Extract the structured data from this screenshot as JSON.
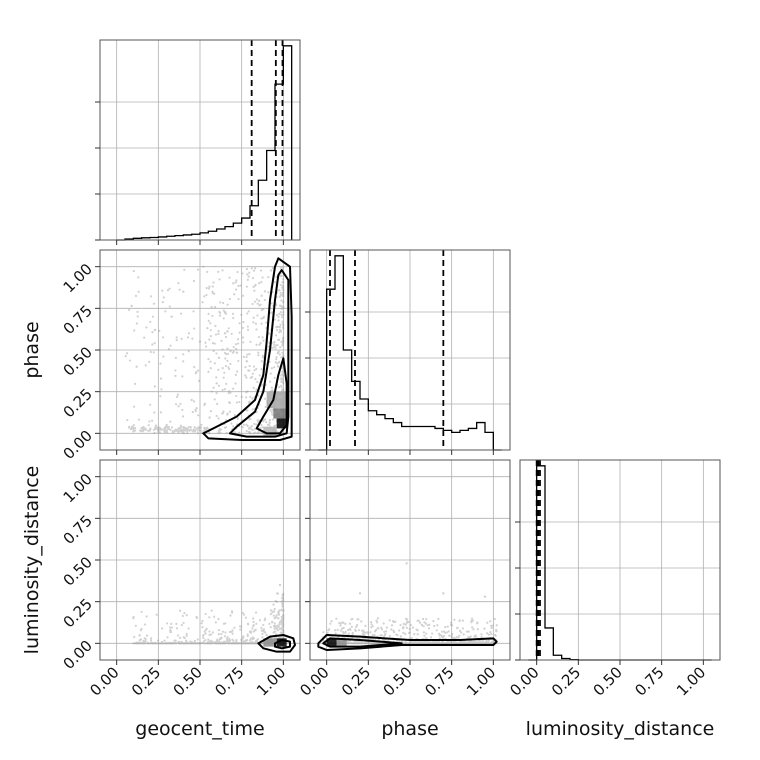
{
  "chart_data": {
    "type": "corner",
    "parameters": [
      "geocent_time",
      "phase",
      "luminosity_distance"
    ],
    "axis_labels": {
      "bottom": [
        "geocent_time",
        "phase",
        "luminosity_distance"
      ],
      "left": [
        "phase",
        "luminosity_distance"
      ]
    },
    "ticks": [
      0.0,
      0.25,
      0.5,
      0.75,
      1.0
    ],
    "tick_labels": [
      "0.00",
      "0.25",
      "0.50",
      "0.75",
      "1.00"
    ],
    "xlim": [
      -0.1,
      1.1
    ],
    "ylim": [
      -0.1,
      1.1
    ],
    "grid": true,
    "colors": {
      "contour": "#000000",
      "points": "#9a9a9a",
      "grid": "#b0b0b0"
    },
    "histograms": [
      {
        "parameter": "geocent_time",
        "edges": [
          0.0,
          0.05,
          0.1,
          0.15,
          0.2,
          0.25,
          0.3,
          0.35,
          0.4,
          0.45,
          0.5,
          0.55,
          0.6,
          0.65,
          0.7,
          0.75,
          0.8,
          0.85,
          0.9,
          0.95,
          1.0,
          1.05
        ],
        "counts": [
          0,
          0.6,
          1.0,
          1.3,
          1.5,
          1.8,
          2.2,
          2.6,
          3.0,
          3.4,
          4.2,
          5.2,
          6.5,
          7.9,
          10.0,
          13.0,
          20.3,
          35.4,
          53.0,
          92.3,
          115.0
        ],
        "quantiles": [
          0.81,
          0.955,
          0.995
        ]
      },
      {
        "parameter": "phase",
        "edges": [
          -0.05,
          0.0,
          0.05,
          0.1,
          0.15,
          0.2,
          0.25,
          0.3,
          0.35,
          0.4,
          0.45,
          0.5,
          0.55,
          0.6,
          0.65,
          0.7,
          0.75,
          0.8,
          0.85,
          0.9,
          0.95,
          1.0,
          1.05
        ],
        "counts": [
          0,
          82,
          99,
          51,
          35,
          26,
          20,
          18,
          16,
          14,
          12,
          12,
          12,
          12,
          11,
          10,
          9,
          10,
          11,
          14,
          9,
          0
        ],
        "quantiles": [
          0.02,
          0.17,
          0.7
        ]
      },
      {
        "parameter": "luminosity_distance",
        "edges": [
          -0.05,
          0.0,
          0.05,
          0.1,
          0.15,
          0.2,
          0.25,
          0.3,
          0.35,
          0.4,
          0.45,
          0.5,
          0.55,
          0.6,
          0.65,
          0.7,
          0.75,
          0.8,
          0.85,
          0.9,
          0.95,
          1.0,
          1.05
        ],
        "counts": [
          0,
          103,
          17,
          2.5,
          0.8,
          0.2,
          0,
          0,
          0,
          0,
          0,
          0,
          0,
          0,
          0,
          0,
          0,
          0,
          0,
          0,
          0,
          0
        ],
        "quantiles": [
          0.0,
          0.01,
          0.02
        ]
      }
    ],
    "pairs": [
      {
        "x": "geocent_time",
        "y": "phase",
        "contours": [
          [
            [
              0.97,
              1.05
            ],
            [
              1.04,
              1.0
            ],
            [
              1.05,
              0.7
            ],
            [
              1.05,
              0.2
            ],
            [
              1.05,
              -0.02
            ],
            [
              0.98,
              -0.04
            ],
            [
              0.75,
              -0.04
            ],
            [
              0.55,
              -0.03
            ],
            [
              0.52,
              0.0
            ],
            [
              0.58,
              0.03
            ],
            [
              0.72,
              0.1
            ],
            [
              0.83,
              0.2
            ],
            [
              0.88,
              0.35
            ],
            [
              0.9,
              0.55
            ],
            [
              0.92,
              0.8
            ],
            [
              0.95,
              1.0
            ]
          ],
          [
            [
              0.99,
              0.98
            ],
            [
              1.03,
              0.92
            ],
            [
              1.03,
              0.5
            ],
            [
              1.03,
              0.1
            ],
            [
              1.02,
              0.0
            ],
            [
              0.95,
              -0.02
            ],
            [
              0.78,
              -0.02
            ],
            [
              0.68,
              0.0
            ],
            [
              0.72,
              0.04
            ],
            [
              0.83,
              0.13
            ],
            [
              0.88,
              0.25
            ],
            [
              0.92,
              0.5
            ],
            [
              0.95,
              0.8
            ],
            [
              0.97,
              0.95
            ]
          ],
          [
            [
              1.0,
              0.45
            ],
            [
              1.02,
              0.3
            ],
            [
              1.02,
              0.05
            ],
            [
              0.98,
              0.0
            ],
            [
              0.9,
              0.0
            ],
            [
              0.84,
              0.03
            ],
            [
              0.88,
              0.1
            ],
            [
              0.94,
              0.2
            ],
            [
              0.97,
              0.35
            ]
          ]
        ],
        "density": [
          {
            "x": 0.96,
            "y": 0.03,
            "w": 0.06,
            "h": 0.06,
            "level": 1.0
          },
          {
            "x": 0.94,
            "y": 0.09,
            "w": 0.08,
            "h": 0.06,
            "level": 0.55
          },
          {
            "x": 0.9,
            "y": 0.15,
            "w": 0.12,
            "h": 0.1,
            "level": 0.35
          },
          {
            "x": 0.88,
            "y": -0.02,
            "w": 0.08,
            "h": 0.06,
            "level": 0.3
          }
        ],
        "points": [
          {
            "x": 0.23,
            "y": 0.62
          },
          {
            "x": 0.4,
            "y": 0.85
          },
          {
            "x": 0.33,
            "y": 0.7
          },
          {
            "x": 0.12,
            "y": 0.4
          },
          {
            "x": 0.5,
            "y": 0.55
          },
          {
            "x": 0.6,
            "y": 0.3
          },
          {
            "x": 0.45,
            "y": 0.2
          },
          {
            "x": 0.3,
            "y": 0.05
          },
          {
            "x": 0.7,
            "y": 0.9
          },
          {
            "x": 0.65,
            "y": 0.6
          }
        ]
      },
      {
        "x": "geocent_time",
        "y": "luminosity_distance",
        "contours": [
          [
            [
              0.85,
              0.0
            ],
            [
              0.92,
              0.04
            ],
            [
              1.0,
              0.05
            ],
            [
              1.06,
              0.03
            ],
            [
              1.07,
              -0.01
            ],
            [
              1.04,
              -0.05
            ],
            [
              0.96,
              -0.05
            ],
            [
              0.88,
              -0.03
            ]
          ],
          [
            [
              0.95,
              0.0
            ],
            [
              0.99,
              0.02
            ],
            [
              1.04,
              0.01
            ],
            [
              1.04,
              -0.02
            ],
            [
              0.99,
              -0.03
            ],
            [
              0.95,
              -0.02
            ]
          ]
        ],
        "density": [
          {
            "x": 0.96,
            "y": -0.02,
            "w": 0.06,
            "h": 0.05,
            "level": 1.0
          },
          {
            "x": 0.88,
            "y": -0.02,
            "w": 0.08,
            "h": 0.05,
            "level": 0.45
          }
        ],
        "points": [
          {
            "x": 0.98,
            "y": 0.35
          },
          {
            "x": 0.99,
            "y": 0.25
          },
          {
            "x": 0.97,
            "y": 0.15
          },
          {
            "x": 0.9,
            "y": 0.05
          }
        ]
      },
      {
        "x": "phase",
        "y": "luminosity_distance",
        "contours": [
          [
            [
              -0.05,
              0.0
            ],
            [
              0.0,
              0.05
            ],
            [
              0.2,
              0.04
            ],
            [
              0.5,
              0.02
            ],
            [
              0.8,
              0.02
            ],
            [
              1.0,
              0.03
            ],
            [
              1.02,
              0.01
            ],
            [
              1.0,
              -0.01
            ],
            [
              0.7,
              -0.01
            ],
            [
              0.45,
              -0.01
            ],
            [
              0.2,
              -0.03
            ],
            [
              0.0,
              -0.04
            ],
            [
              -0.05,
              -0.02
            ]
          ],
          [
            [
              -0.02,
              0.0
            ],
            [
              0.02,
              0.03
            ],
            [
              0.2,
              0.02
            ],
            [
              0.45,
              0.0
            ],
            [
              0.2,
              -0.02
            ],
            [
              0.02,
              -0.02
            ]
          ]
        ],
        "density": [
          {
            "x": 0.0,
            "y": -0.02,
            "w": 0.06,
            "h": 0.05,
            "level": 1.0
          },
          {
            "x": 0.06,
            "y": -0.02,
            "w": 0.06,
            "h": 0.05,
            "level": 0.45
          }
        ],
        "points": [
          {
            "x": 0.48,
            "y": 0.48
          },
          {
            "x": 0.2,
            "y": 0.3
          },
          {
            "x": 0.7,
            "y": 0.3
          },
          {
            "x": 0.95,
            "y": 0.28
          }
        ]
      }
    ]
  }
}
